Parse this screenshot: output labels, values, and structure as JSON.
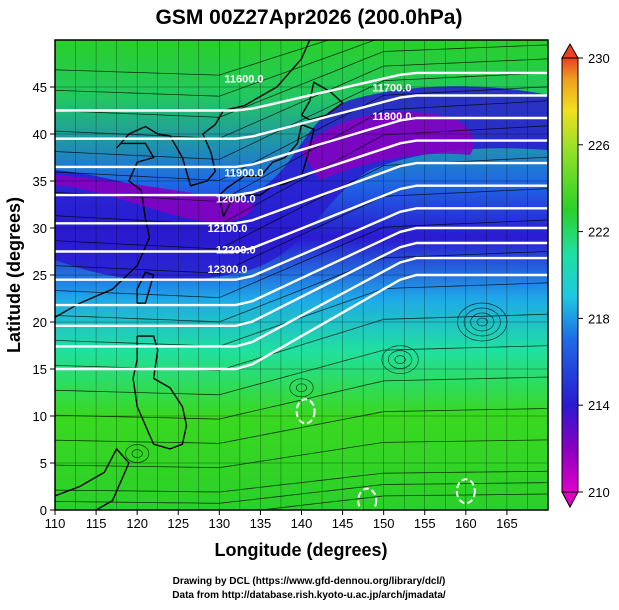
{
  "title": "GSM 00Z27Apr2026 (200.0hPa)",
  "x_axis": {
    "label": "Longitude (degrees)",
    "range": [
      110,
      170
    ],
    "ticks": [
      110,
      115,
      120,
      125,
      130,
      135,
      140,
      145,
      150,
      155,
      160,
      165
    ]
  },
  "y_axis": {
    "label": "Latitude  (degrees)",
    "range": [
      0,
      50
    ],
    "ticks": [
      0,
      5,
      10,
      15,
      20,
      25,
      30,
      35,
      40,
      45
    ]
  },
  "colorbar": {
    "range": [
      210,
      230
    ],
    "labels": [
      210,
      214,
      218,
      222,
      226,
      230
    ],
    "colors": [
      "#e000c8",
      "#8a00c0",
      "#2a1ad0",
      "#1f6ae6",
      "#1fc8e0",
      "#20e0a0",
      "#2ad02a",
      "#8ee02a",
      "#f0e020",
      "#f0a020",
      "#e84020"
    ]
  },
  "contours": [
    {
      "label": "11600.0",
      "lon": 133,
      "lat": 45.5
    },
    {
      "label": "11700.0",
      "lon": 151,
      "lat": 44.5
    },
    {
      "label": "11800.0",
      "lon": 151,
      "lat": 41.5
    },
    {
      "label": "11900.0",
      "lon": 133,
      "lat": 35.5
    },
    {
      "label": "12000.0",
      "lon": 132,
      "lat": 32.7
    },
    {
      "label": "12100.0",
      "lon": 131,
      "lat": 29.6
    },
    {
      "label": "12200.0",
      "lon": 132,
      "lat": 27.3
    },
    {
      "label": "12300.0",
      "lon": 131,
      "lat": 25.2
    }
  ],
  "credits": {
    "line1": "Drawing by DCL (https://www.gfd-dennou.org/library/dcl/)",
    "line2": "Data from http://database.rish.kyoto-u.ac.jp/arch/jmadata/"
  }
}
